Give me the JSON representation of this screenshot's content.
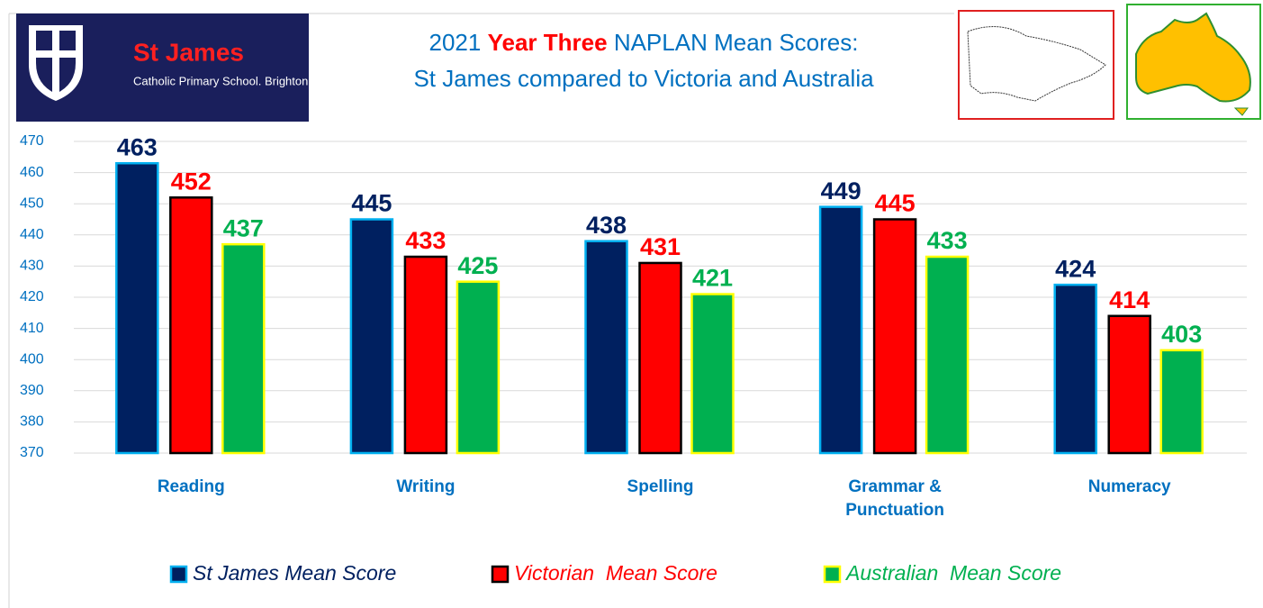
{
  "chart_data": {
    "type": "bar",
    "logo": {
      "name": "St James",
      "school": "Catholic Primary School. Brighton"
    },
    "title": {
      "before": "2021",
      "highlight": "Year Three",
      "after": "NAPLAN Mean Scores:"
    },
    "subtitle": "St James compared to Victoria and Australia",
    "categories": [
      "Reading",
      "Writing",
      "Spelling",
      "Grammar & Punctuation",
      "Numeracy"
    ],
    "series": [
      {
        "name": "St James Mean Score",
        "color": "#002060",
        "edge": "#00b0f0",
        "values": [
          463,
          445,
          438,
          449,
          424
        ]
      },
      {
        "name": "Victorian  Mean Score",
        "color": "#ff0000",
        "edge": "#000000",
        "values": [
          452,
          433,
          431,
          445,
          414
        ]
      },
      {
        "name": "Australian  Mean Score",
        "color": "#00b050",
        "edge": "#ffff00",
        "values": [
          437,
          425,
          421,
          433,
          403
        ]
      }
    ],
    "ylim": [
      370,
      470
    ],
    "yticks": [
      370,
      380,
      390,
      400,
      410,
      420,
      430,
      440,
      450,
      460,
      470
    ],
    "grid": true,
    "legend": "bottom"
  }
}
